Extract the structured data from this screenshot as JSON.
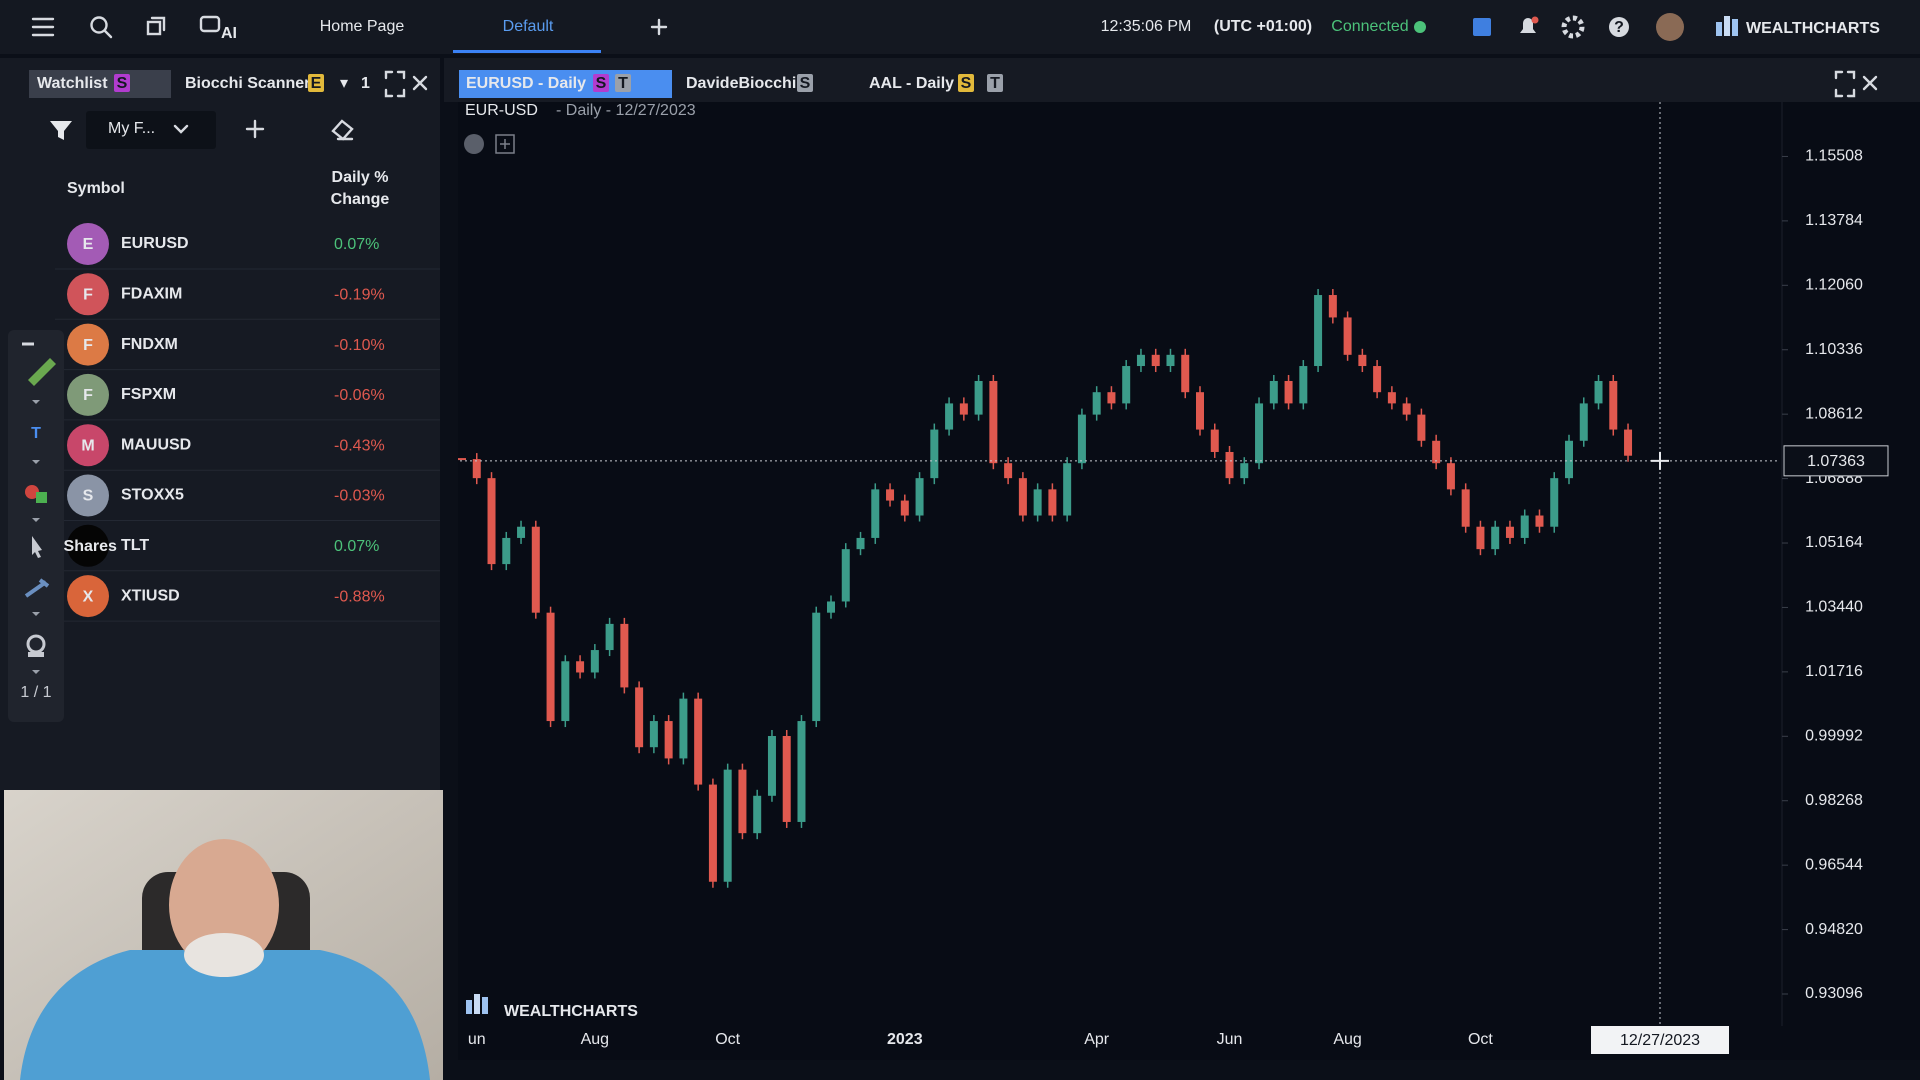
{
  "top_bar": {
    "menu_items": [
      "Home Page",
      "Default"
    ],
    "ai_label": "AI",
    "time": "12:35:06 PM",
    "timezone": "(UTC +01:00)",
    "status": "Connected",
    "brand": "WEALTHCHARTS"
  },
  "left_panel": {
    "tabs": [
      {
        "label": "Watchlist",
        "badge": "S",
        "badge_color": "#b23ccf"
      },
      {
        "label": "Biocchi Scanner",
        "badge": "E",
        "badge_color": "#e2b93b"
      }
    ],
    "tab_count": "1",
    "list_name": "My F...",
    "columns": [
      "Symbol",
      "Daily % Change"
    ],
    "rows": [
      {
        "icon": "E",
        "icon_color": "#a35bb5",
        "symbol": "EURUSD",
        "change": "0.07%"
      },
      {
        "icon": "F",
        "icon_color": "#d0545a",
        "symbol": "FDAXIM",
        "change": "-0.19%"
      },
      {
        "icon": "F",
        "icon_color": "#dc7a45",
        "symbol": "FNDXM",
        "change": "-0.10%"
      },
      {
        "icon": "F",
        "icon_color": "#7f9a78",
        "symbol": "FSPXM",
        "change": "-0.06%"
      },
      {
        "icon": "M",
        "icon_color": "#c8476a",
        "symbol": "MAUUSD",
        "change": "-0.43%"
      },
      {
        "icon": "S",
        "icon_color": "#8a94a6",
        "symbol": "STOXX5",
        "change": "-0.03%"
      },
      {
        "icon": "iShares",
        "icon_color": "#050505",
        "symbol": "TLT",
        "change": "0.07%"
      },
      {
        "icon": "X",
        "icon_color": "#d9653a",
        "symbol": "XTIUSD",
        "change": "-0.88%"
      }
    ],
    "toolbar_page": "1 / 1"
  },
  "chart_tabs": [
    {
      "label": "EURUSD - Daily",
      "badges": [
        {
          "text": "S",
          "color": "#b23ccf"
        },
        {
          "text": "T",
          "color": "#9aa0aa"
        }
      ]
    },
    {
      "label": "DavideBiocchi",
      "badges": [
        {
          "text": "S",
          "color": "#9aa0aa"
        }
      ]
    },
    {
      "label": "AAL - Daily",
      "badges": [
        {
          "text": "S",
          "color": "#e2b93b"
        },
        {
          "text": "T",
          "color": "#9aa0aa"
        }
      ]
    }
  ],
  "chart_data": {
    "type": "candlestick",
    "symbol": "EUR-USD",
    "title": "- Daily - 12/27/2023",
    "watermark": "WEALTHCHARTS",
    "up_color": "#3c9c8a",
    "down_color": "#e0594f",
    "categories": [
      null,
      "un",
      null,
      null,
      null,
      null,
      null,
      null,
      null,
      "Aug",
      null,
      null,
      null,
      null,
      null,
      null,
      null,
      null,
      "Oct",
      null,
      null,
      null,
      null,
      null,
      null,
      null,
      null,
      null,
      null,
      null,
      "2023",
      null,
      null,
      null,
      null,
      null,
      null,
      null,
      null,
      null,
      null,
      null,
      null,
      "Apr",
      null,
      null,
      null,
      null,
      null,
      null,
      null,
      null,
      "Jun",
      null,
      null,
      null,
      null,
      null,
      null,
      null,
      "Aug",
      null,
      null,
      null,
      null,
      null,
      null,
      null,
      null,
      "Oct",
      null,
      null,
      null,
      null,
      null,
      null,
      null,
      null,
      null,
      null
    ],
    "values": [
      1.0741,
      1.069,
      1.046,
      1.053,
      1.056,
      1.033,
      1.004,
      1.02,
      1.017,
      1.023,
      1.03,
      1.013,
      0.997,
      1.004,
      0.994,
      1.01,
      0.987,
      0.961,
      0.991,
      0.974,
      0.984,
      1.0,
      0.977,
      1.004,
      1.033,
      1.036,
      1.05,
      1.053,
      1.066,
      1.063,
      1.059,
      1.069,
      1.082,
      1.089,
      1.086,
      1.095,
      1.073,
      1.069,
      1.059,
      1.066,
      1.059,
      1.073,
      1.086,
      1.092,
      1.089,
      1.099,
      1.102,
      1.099,
      1.102,
      1.092,
      1.082,
      1.076,
      1.069,
      1.073,
      1.089,
      1.095,
      1.089,
      1.099,
      1.118,
      1.112,
      1.102,
      1.099,
      1.092,
      1.089,
      1.086,
      1.079,
      1.073,
      1.066,
      1.056,
      1.05,
      1.056,
      1.053,
      1.059,
      1.056,
      1.069,
      1.079,
      1.089,
      1.095,
      1.082,
      1.075
    ],
    "ylim": [
      0.9224,
      1.1643
    ],
    "yticks": [
      1.15508,
      1.13784,
      {
        "value": 1.1206,
        "label": "1.12060"
      },
      1.10336,
      1.08612,
      1.06888,
      1.05164,
      {
        "value": 1.0344,
        "label": "1.03440"
      },
      1.01716,
      0.99992,
      0.98268,
      0.96544,
      {
        "value": 0.9482,
        "label": "0.94820"
      },
      0.93096
    ],
    "crosshair": {
      "price": 1.07363,
      "date": "12/27/2023"
    }
  }
}
